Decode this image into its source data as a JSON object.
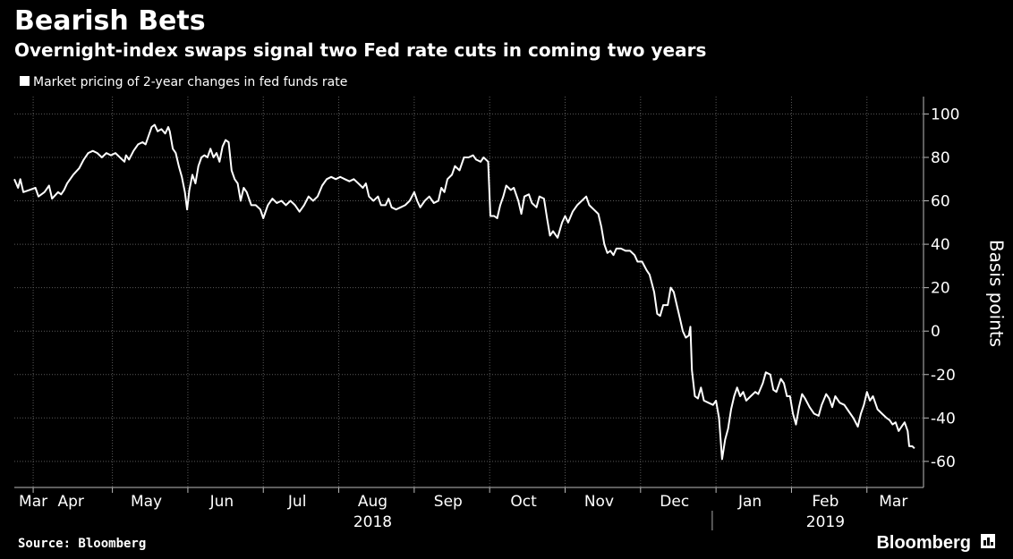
{
  "chart_data": {
    "type": "line",
    "title": "Bearish Bets",
    "subtitle": "Overnight-index swaps signal two Fed rate cuts in coming two years",
    "legend": [
      "Market pricing of 2-year changes in fed funds rate"
    ],
    "ylabel": "Basis points",
    "ylim": [
      -72,
      108
    ],
    "yticks": [
      100,
      80,
      60,
      40,
      20,
      0,
      -20,
      -40,
      -60
    ],
    "ytick_labels": [
      "100",
      "80",
      "60",
      "40",
      "20",
      "0",
      "-20",
      "-40",
      "-60"
    ],
    "x_range": [
      0,
      12.05
    ],
    "month_ticks": [
      0.25,
      1.3,
      2.3,
      3.3,
      4.3,
      5.3,
      6.3,
      7.3,
      8.3,
      9.3,
      10.3,
      11.3
    ],
    "month_labels": [
      {
        "label": "Mar",
        "x": 0.25
      },
      {
        "label": "Apr",
        "x": 0.75
      },
      {
        "label": "May",
        "x": 1.75
      },
      {
        "label": "Jun",
        "x": 2.75
      },
      {
        "label": "Jul",
        "x": 3.75
      },
      {
        "label": "Aug",
        "x": 4.75
      },
      {
        "label": "Sep",
        "x": 5.75
      },
      {
        "label": "Oct",
        "x": 6.75
      },
      {
        "label": "Nov",
        "x": 7.75
      },
      {
        "label": "Dec",
        "x": 8.75
      },
      {
        "label": "Jan",
        "x": 9.75
      },
      {
        "label": "Feb",
        "x": 10.75
      },
      {
        "label": "Mar",
        "x": 11.65
      }
    ],
    "year_labels": [
      {
        "label": "2018",
        "x": 4.75
      },
      {
        "label": "2019",
        "x": 10.75
      }
    ],
    "year_divider_x": 9.25,
    "series": [
      {
        "name": "Market pricing of 2-year changes in fed funds rate",
        "points": [
          [
            0.0,
            70
          ],
          [
            0.05,
            66
          ],
          [
            0.08,
            70
          ],
          [
            0.12,
            64
          ],
          [
            0.2,
            65
          ],
          [
            0.28,
            66
          ],
          [
            0.32,
            62
          ],
          [
            0.4,
            64
          ],
          [
            0.46,
            67
          ],
          [
            0.5,
            61
          ],
          [
            0.58,
            64
          ],
          [
            0.62,
            63
          ],
          [
            0.66,
            65
          ],
          [
            0.7,
            68
          ],
          [
            0.78,
            72
          ],
          [
            0.86,
            75
          ],
          [
            0.92,
            79
          ],
          [
            0.98,
            82
          ],
          [
            1.04,
            83
          ],
          [
            1.1,
            82
          ],
          [
            1.16,
            80
          ],
          [
            1.22,
            82
          ],
          [
            1.28,
            81
          ],
          [
            1.34,
            82
          ],
          [
            1.4,
            80
          ],
          [
            1.46,
            78
          ],
          [
            1.48,
            81
          ],
          [
            1.52,
            79
          ],
          [
            1.58,
            83
          ],
          [
            1.64,
            86
          ],
          [
            1.7,
            87
          ],
          [
            1.74,
            86
          ],
          [
            1.78,
            90
          ],
          [
            1.82,
            94
          ],
          [
            1.86,
            95
          ],
          [
            1.9,
            92
          ],
          [
            1.95,
            93
          ],
          [
            2.0,
            91
          ],
          [
            2.04,
            94
          ],
          [
            2.06,
            92
          ],
          [
            2.1,
            84
          ],
          [
            2.14,
            82
          ],
          [
            2.18,
            76
          ],
          [
            2.22,
            71
          ],
          [
            2.26,
            64
          ],
          [
            2.29,
            56
          ],
          [
            2.32,
            65
          ],
          [
            2.36,
            72
          ],
          [
            2.4,
            68
          ],
          [
            2.44,
            76
          ],
          [
            2.48,
            80
          ],
          [
            2.52,
            81
          ],
          [
            2.56,
            80
          ],
          [
            2.6,
            84
          ],
          [
            2.64,
            80
          ],
          [
            2.68,
            82
          ],
          [
            2.72,
            78
          ],
          [
            2.76,
            85
          ],
          [
            2.8,
            88
          ],
          [
            2.84,
            87
          ],
          [
            2.88,
            74
          ],
          [
            2.92,
            70
          ],
          [
            2.96,
            68
          ],
          [
            3.0,
            60
          ],
          [
            3.04,
            66
          ],
          [
            3.08,
            64
          ],
          [
            3.14,
            58
          ],
          [
            3.2,
            58
          ],
          [
            3.26,
            56
          ],
          [
            3.3,
            52
          ],
          [
            3.36,
            58
          ],
          [
            3.42,
            61
          ],
          [
            3.48,
            59
          ],
          [
            3.54,
            60
          ],
          [
            3.6,
            58
          ],
          [
            3.66,
            60
          ],
          [
            3.72,
            58
          ],
          [
            3.78,
            55
          ],
          [
            3.84,
            58
          ],
          [
            3.9,
            62
          ],
          [
            3.96,
            60
          ],
          [
            4.02,
            62
          ],
          [
            4.08,
            67
          ],
          [
            4.14,
            70
          ],
          [
            4.2,
            71
          ],
          [
            4.26,
            70
          ],
          [
            4.32,
            71
          ],
          [
            4.38,
            70
          ],
          [
            4.44,
            69
          ],
          [
            4.5,
            70
          ],
          [
            4.56,
            68
          ],
          [
            4.62,
            66
          ],
          [
            4.66,
            68
          ],
          [
            4.7,
            62
          ],
          [
            4.76,
            60
          ],
          [
            4.82,
            62
          ],
          [
            4.86,
            58
          ],
          [
            4.92,
            58
          ],
          [
            4.96,
            61
          ],
          [
            5.0,
            57
          ],
          [
            5.06,
            56
          ],
          [
            5.12,
            57
          ],
          [
            5.18,
            58
          ],
          [
            5.24,
            60
          ],
          [
            5.3,
            64
          ],
          [
            5.34,
            60
          ],
          [
            5.38,
            57
          ],
          [
            5.44,
            60
          ],
          [
            5.5,
            62
          ],
          [
            5.56,
            59
          ],
          [
            5.62,
            60
          ],
          [
            5.66,
            66
          ],
          [
            5.7,
            64
          ],
          [
            5.74,
            70
          ],
          [
            5.8,
            72
          ],
          [
            5.84,
            76
          ],
          [
            5.9,
            74
          ],
          [
            5.96,
            80
          ],
          [
            6.02,
            80
          ],
          [
            6.08,
            81
          ],
          [
            6.12,
            79
          ],
          [
            6.18,
            78
          ],
          [
            6.22,
            80
          ],
          [
            6.28,
            78
          ],
          [
            6.31,
            53
          ],
          [
            6.36,
            53
          ],
          [
            6.4,
            52
          ],
          [
            6.44,
            58
          ],
          [
            6.48,
            62
          ],
          [
            6.52,
            67
          ],
          [
            6.58,
            65
          ],
          [
            6.62,
            66
          ],
          [
            6.68,
            60
          ],
          [
            6.72,
            54
          ],
          [
            6.76,
            62
          ],
          [
            6.82,
            63
          ],
          [
            6.86,
            59
          ],
          [
            6.92,
            57
          ],
          [
            6.96,
            62
          ],
          [
            7.02,
            61
          ],
          [
            7.06,
            52
          ],
          [
            7.1,
            44
          ],
          [
            7.14,
            46
          ],
          [
            7.2,
            43
          ],
          [
            7.26,
            50
          ],
          [
            7.3,
            53
          ],
          [
            7.34,
            50
          ],
          [
            7.4,
            55
          ],
          [
            7.46,
            58
          ],
          [
            7.52,
            60
          ],
          [
            7.58,
            62
          ],
          [
            7.62,
            58
          ],
          [
            7.68,
            56
          ],
          [
            7.74,
            54
          ],
          [
            7.78,
            48
          ],
          [
            7.82,
            40
          ],
          [
            7.86,
            36
          ],
          [
            7.9,
            37
          ],
          [
            7.94,
            35
          ],
          [
            7.98,
            38
          ],
          [
            8.04,
            38
          ],
          [
            8.1,
            37
          ],
          [
            8.16,
            37
          ],
          [
            8.22,
            35
          ],
          [
            8.26,
            32
          ],
          [
            8.32,
            32
          ],
          [
            8.38,
            28
          ],
          [
            8.42,
            26
          ],
          [
            8.48,
            18
          ],
          [
            8.52,
            8
          ],
          [
            8.56,
            7
          ],
          [
            8.6,
            12
          ],
          [
            8.66,
            12
          ],
          [
            8.7,
            20
          ],
          [
            8.74,
            18
          ],
          [
            8.78,
            12
          ],
          [
            8.82,
            6
          ],
          [
            8.86,
            0
          ],
          [
            8.9,
            -3
          ],
          [
            8.94,
            -2
          ],
          [
            8.96,
            2
          ],
          [
            8.98,
            -18
          ],
          [
            9.02,
            -30
          ],
          [
            9.06,
            -31
          ],
          [
            9.1,
            -26
          ],
          [
            9.14,
            -32
          ],
          [
            9.2,
            -33
          ],
          [
            9.26,
            -34
          ],
          [
            9.3,
            -32
          ],
          [
            9.34,
            -40
          ],
          [
            9.38,
            -59
          ],
          [
            9.42,
            -50
          ],
          [
            9.46,
            -45
          ],
          [
            9.5,
            -36
          ],
          [
            9.54,
            -30
          ],
          [
            9.58,
            -26
          ],
          [
            9.62,
            -30
          ],
          [
            9.66,
            -28
          ],
          [
            9.7,
            -32
          ],
          [
            9.76,
            -30
          ],
          [
            9.82,
            -28
          ],
          [
            9.86,
            -29
          ],
          [
            9.92,
            -24
          ],
          [
            9.96,
            -19
          ],
          [
            10.02,
            -20
          ],
          [
            10.06,
            -27
          ],
          [
            10.1,
            -28
          ],
          [
            10.16,
            -22
          ],
          [
            10.2,
            -24
          ],
          [
            10.24,
            -30
          ],
          [
            10.28,
            -30
          ],
          [
            10.32,
            -38
          ],
          [
            10.36,
            -43
          ],
          [
            10.4,
            -35
          ],
          [
            10.44,
            -29
          ],
          [
            10.48,
            -31
          ],
          [
            10.54,
            -35
          ],
          [
            10.6,
            -38
          ],
          [
            10.66,
            -39
          ],
          [
            10.7,
            -34
          ],
          [
            10.76,
            -29
          ],
          [
            10.8,
            -31
          ],
          [
            10.84,
            -35
          ],
          [
            10.88,
            -30
          ],
          [
            10.94,
            -33
          ],
          [
            11.0,
            -34
          ],
          [
            11.06,
            -37
          ],
          [
            11.12,
            -40
          ],
          [
            11.18,
            -44
          ],
          [
            11.22,
            -38
          ],
          [
            11.26,
            -34
          ],
          [
            11.3,
            -28
          ],
          [
            11.34,
            -32
          ],
          [
            11.38,
            -30
          ],
          [
            11.44,
            -36
          ],
          [
            11.5,
            -38
          ],
          [
            11.56,
            -40
          ],
          [
            11.6,
            -41
          ],
          [
            11.64,
            -43
          ],
          [
            11.68,
            -42
          ],
          [
            11.72,
            -46
          ],
          [
            11.76,
            -44
          ],
          [
            11.8,
            -42
          ],
          [
            11.84,
            -46
          ],
          [
            11.86,
            -53
          ],
          [
            11.9,
            -53
          ],
          [
            11.93,
            -54
          ]
        ]
      }
    ]
  },
  "footer": {
    "source": "Source: Bloomberg",
    "brand": "Bloomberg"
  },
  "colors": {
    "background": "#000000",
    "line": "#ffffff",
    "grid": "#666666",
    "text": "#ffffff"
  }
}
